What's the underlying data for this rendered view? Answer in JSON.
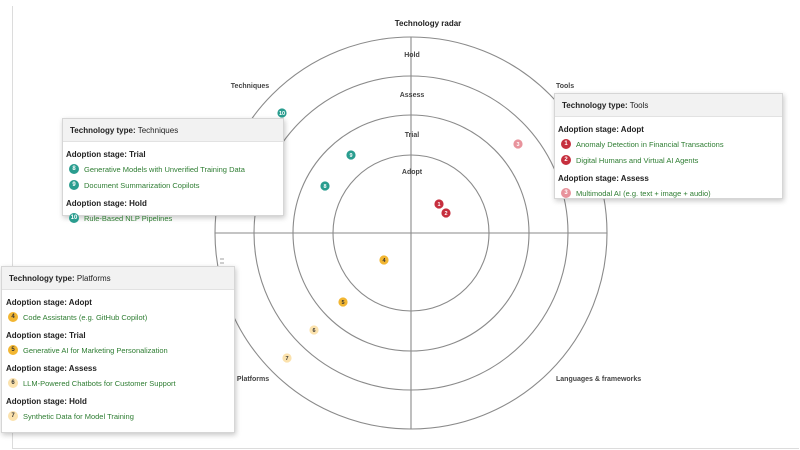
{
  "chart_data": {
    "type": "radar",
    "title": "Technology radar",
    "rings": [
      "Adopt",
      "Trial",
      "Assess",
      "Hold"
    ],
    "quadrants": [
      "Techniques",
      "Tools",
      "Platforms",
      "Languages & frameworks"
    ],
    "colors": {
      "Techniques": "#2a9d8f",
      "Tools": "#c62f3e",
      "Tools_faded": "#e8939c",
      "Platforms": "#f2b632",
      "Platforms_faded": "#fbe2ad"
    },
    "blips": [
      {
        "id": 1,
        "name": "Anomaly Detection in Financial Transactions",
        "quadrant": "Tools",
        "ring": "Adopt"
      },
      {
        "id": 2,
        "name": "Digital Humans and Virtual AI Agents",
        "quadrant": "Tools",
        "ring": "Adopt"
      },
      {
        "id": 3,
        "name": "Multimodal AI (e.g. text + image + audio)",
        "quadrant": "Tools",
        "ring": "Assess"
      },
      {
        "id": 4,
        "name": "Code Assistants (e.g. GitHub Copilot)",
        "quadrant": "Platforms",
        "ring": "Adopt"
      },
      {
        "id": 5,
        "name": "Generative AI for Marketing Personalization",
        "quadrant": "Platforms",
        "ring": "Trial"
      },
      {
        "id": 6,
        "name": "LLM-Powered Chatbots for Customer Support",
        "quadrant": "Platforms",
        "ring": "Assess"
      },
      {
        "id": 7,
        "name": "Synthetic Data for Model Training",
        "quadrant": "Platforms",
        "ring": "Hold"
      },
      {
        "id": 8,
        "name": "Generative Models with Unverified Training Data",
        "quadrant": "Techniques",
        "ring": "Trial"
      },
      {
        "id": 9,
        "name": "Document Summarization Copilots",
        "quadrant": "Techniques",
        "ring": "Trial"
      },
      {
        "id": 10,
        "name": "Rule-Based NLP Pipelines",
        "quadrant": "Techniques",
        "ring": "Hold"
      }
    ]
  },
  "panels": {
    "techniques": {
      "type_label": "Technology type:",
      "type_value": "Techniques",
      "groups": [
        {
          "stage": "Adoption stage: Trial",
          "items": [
            {
              "num": "8",
              "label": "Generative Models with Unverified Training Data"
            },
            {
              "num": "9",
              "label": "Document Summarization Copilots"
            }
          ]
        },
        {
          "stage": "Adoption stage: Hold",
          "items": [
            {
              "num": "10",
              "label": "Rule-Based NLP Pipelines"
            }
          ]
        }
      ]
    },
    "tools": {
      "type_label": "Technology type:",
      "type_value": "Tools",
      "groups": [
        {
          "stage": "Adoption stage: Adopt",
          "items": [
            {
              "num": "1",
              "label": "Anomaly Detection in Financial Transactions"
            },
            {
              "num": "2",
              "label": "Digital Humans and Virtual AI Agents"
            }
          ]
        },
        {
          "stage": "Adoption stage: Assess",
          "items": [
            {
              "num": "3",
              "label": "Multimodal AI (e.g. text + image + audio)"
            }
          ]
        }
      ]
    },
    "platforms": {
      "type_label": "Technology type:",
      "type_value": "Platforms",
      "groups": [
        {
          "stage": "Adoption stage: Adopt",
          "items": [
            {
              "num": "4",
              "label": "Code Assistants (e.g. GitHub Copilot)"
            }
          ]
        },
        {
          "stage": "Adoption stage: Trial",
          "items": [
            {
              "num": "5",
              "label": "Generative AI for Marketing Personalization"
            }
          ]
        },
        {
          "stage": "Adoption stage: Assess",
          "items": [
            {
              "num": "6",
              "label": "LLM-Powered Chatbots for Customer Support"
            }
          ]
        },
        {
          "stage": "Adoption stage: Hold",
          "items": [
            {
              "num": "7",
              "label": "Synthetic Data for Model Training"
            }
          ]
        }
      ]
    }
  }
}
